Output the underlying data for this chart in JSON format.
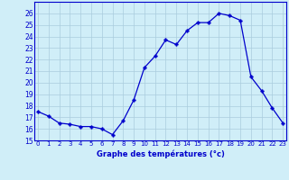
{
  "hours": [
    0,
    1,
    2,
    3,
    4,
    5,
    6,
    7,
    8,
    9,
    10,
    11,
    12,
    13,
    14,
    15,
    16,
    17,
    18,
    19,
    20,
    21,
    22,
    23
  ],
  "temps": [
    17.5,
    17.1,
    16.5,
    16.4,
    16.2,
    16.2,
    16.0,
    15.5,
    16.7,
    18.5,
    21.3,
    22.3,
    23.7,
    23.3,
    24.5,
    25.2,
    25.2,
    26.0,
    25.8,
    25.4,
    20.5,
    19.3,
    17.8,
    16.5
  ],
  "line_color": "#0000cc",
  "marker": "P",
  "marker_size": 2.5,
  "bg_color": "#d0eef8",
  "grid_color": "#aaccdd",
  "xlabel": "Graphe des températures (°c)",
  "ylim": [
    15,
    27
  ],
  "yticks": [
    15,
    16,
    17,
    18,
    19,
    20,
    21,
    22,
    23,
    24,
    25,
    26
  ],
  "xlim": [
    -0.3,
    23.3
  ],
  "xticks": [
    0,
    1,
    2,
    3,
    4,
    5,
    6,
    7,
    8,
    9,
    10,
    11,
    12,
    13,
    14,
    15,
    16,
    17,
    18,
    19,
    20,
    21,
    22,
    23
  ],
  "xtick_labels": [
    "0",
    "1",
    "2",
    "3",
    "4",
    "5",
    "6",
    "7",
    "8",
    "9",
    "10",
    "11",
    "12",
    "13",
    "14",
    "15",
    "16",
    "17",
    "18",
    "19",
    "20",
    "21",
    "22",
    "23"
  ]
}
